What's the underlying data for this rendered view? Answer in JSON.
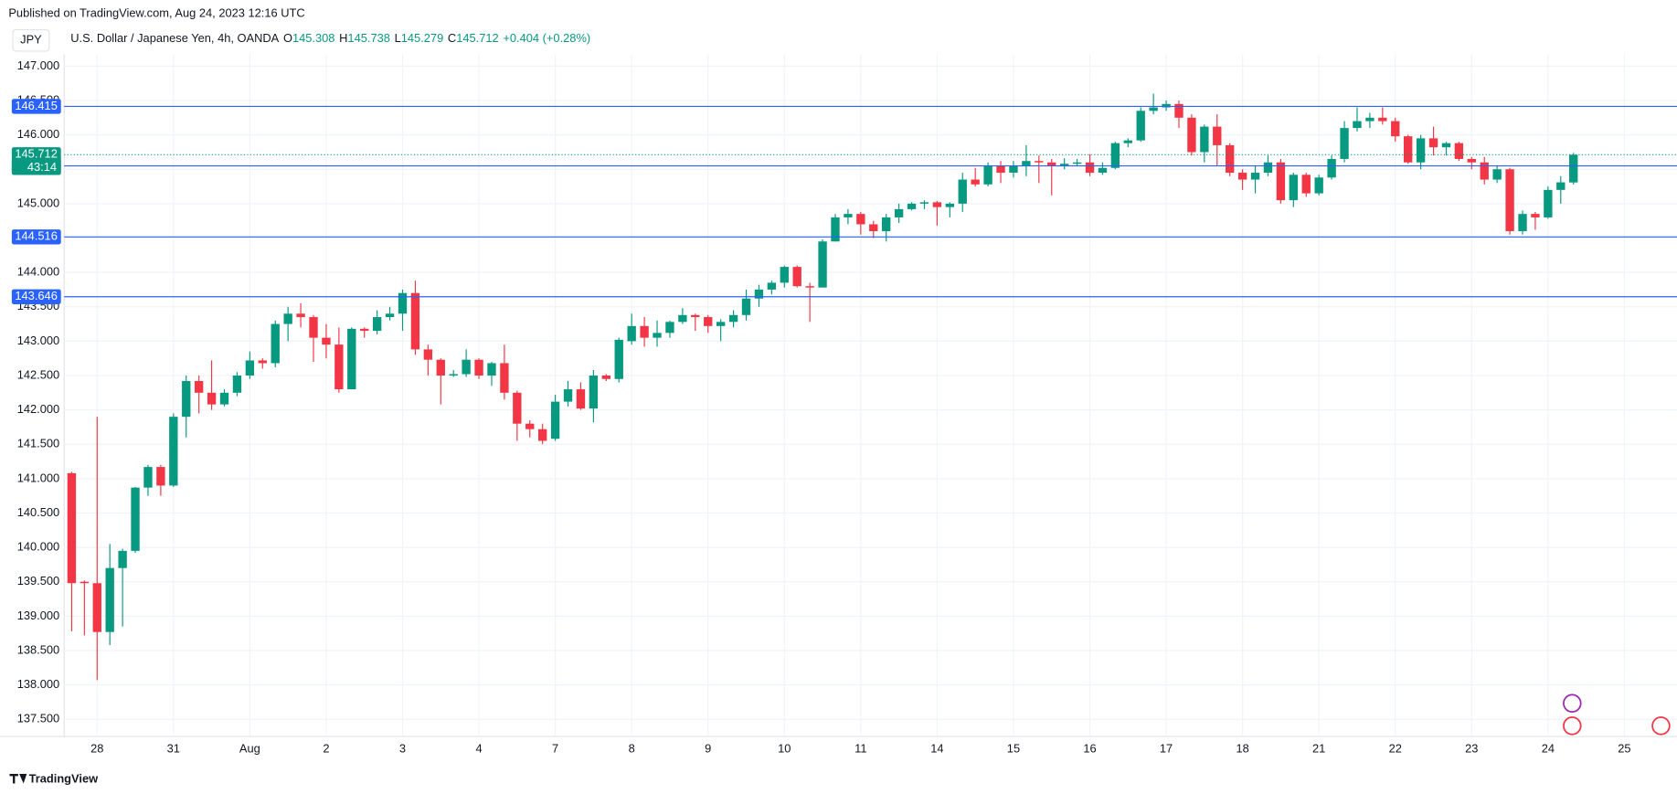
{
  "header": {
    "published": "Published on TradingView.com, Aug 24, 2023 12:16 UTC",
    "button": "JPY",
    "symbol": "U.S. Dollar / Japanese Yen, 4h, OANDA",
    "ohlc_letters": [
      "O",
      "H",
      "L",
      "C"
    ],
    "change": "+0.404 (+0.28%)"
  },
  "footer": {
    "brand": "TradingView"
  },
  "chart_data": {
    "type": "candlestick",
    "categories": [
      null,
      null,
      "28",
      null,
      null,
      null,
      null,
      null,
      "31",
      null,
      null,
      null,
      null,
      null,
      "Aug",
      null,
      null,
      null,
      null,
      null,
      "2",
      null,
      null,
      null,
      null,
      null,
      "3",
      null,
      null,
      null,
      null,
      null,
      "4",
      null,
      null,
      null,
      null,
      null,
      "7",
      null,
      null,
      null,
      null,
      null,
      "8",
      null,
      null,
      null,
      null,
      null,
      "9",
      null,
      null,
      null,
      null,
      null,
      "10",
      null,
      null,
      null,
      null,
      null,
      "11",
      null,
      null,
      null,
      null,
      null,
      "14",
      null,
      null,
      null,
      null,
      null,
      "15",
      null,
      null,
      null,
      null,
      null,
      "16",
      null,
      null,
      null,
      null,
      null,
      "17",
      null,
      null,
      null,
      null,
      null,
      "18",
      null,
      null,
      null,
      null,
      null,
      "21",
      null,
      null,
      null,
      null,
      null,
      "22",
      null,
      null,
      null,
      null,
      null,
      "23",
      null,
      null,
      null,
      null,
      null,
      "24",
      null,
      null,
      null,
      null,
      null,
      "25"
    ],
    "open": [
      141.08,
      139.5,
      139.48,
      138.77,
      139.7,
      139.95,
      140.87,
      141.17,
      140.9,
      141.9,
      142.42,
      142.25,
      142.08,
      142.25,
      142.5,
      142.72,
      142.68,
      143.25,
      143.4,
      143.35,
      143.05,
      142.95,
      142.3,
      143.18,
      143.15,
      143.35,
      143.4,
      143.7,
      142.88,
      142.73,
      142.5,
      142.52,
      142.73,
      142.5,
      142.68,
      142.25,
      141.8,
      141.72,
      141.58,
      142.12,
      142.3,
      142.02,
      142.5,
      142.45,
      143.0,
      143.22,
      143.05,
      143.12,
      143.28,
      143.38,
      143.35,
      143.22,
      143.28,
      143.38,
      143.62,
      143.75,
      143.85,
      144.08,
      143.8,
      143.78,
      144.45,
      144.8,
      144.85,
      144.7,
      144.6,
      144.8,
      144.92,
      145.0,
      145.02,
      144.95,
      145.0,
      145.35,
      145.28,
      145.55,
      145.45,
      145.55,
      145.62,
      145.6,
      145.55,
      145.58,
      145.6,
      145.45,
      145.52,
      145.88,
      145.92,
      146.35,
      146.4,
      146.45,
      146.25,
      145.75,
      146.12,
      145.85,
      145.45,
      145.35,
      145.45,
      145.6,
      145.05,
      145.42,
      145.15,
      145.38,
      145.65,
      146.1,
      146.2,
      146.25,
      146.2,
      145.98,
      145.6,
      145.95,
      145.82,
      145.88,
      145.65,
      145.6,
      145.35,
      145.5,
      144.6,
      144.85,
      144.8,
      145.2,
      145.308,
      null,
      null,
      null,
      null
    ],
    "high": [
      141.1,
      139.52,
      141.9,
      140.05,
      139.98,
      140.88,
      141.2,
      141.2,
      141.95,
      142.5,
      142.5,
      142.72,
      142.3,
      142.55,
      142.85,
      142.75,
      143.3,
      143.5,
      143.55,
      143.38,
      143.25,
      143.2,
      143.2,
      143.2,
      143.45,
      143.5,
      143.75,
      143.88,
      142.95,
      142.75,
      142.58,
      142.88,
      142.75,
      142.7,
      142.95,
      142.28,
      141.85,
      141.8,
      142.22,
      142.42,
      142.4,
      142.58,
      142.52,
      143.05,
      143.4,
      143.35,
      143.3,
      143.3,
      143.48,
      143.4,
      143.38,
      143.32,
      143.45,
      143.75,
      143.82,
      143.88,
      144.1,
      144.1,
      143.85,
      144.48,
      144.85,
      144.92,
      144.88,
      144.75,
      144.85,
      145.0,
      145.02,
      145.05,
      145.04,
      145.02,
      145.45,
      145.52,
      145.6,
      145.62,
      145.62,
      145.85,
      145.7,
      145.65,
      145.66,
      145.65,
      145.72,
      145.6,
      145.9,
      145.95,
      146.4,
      146.6,
      146.5,
      146.5,
      146.3,
      146.15,
      146.3,
      145.88,
      145.5,
      145.55,
      145.7,
      145.65,
      145.45,
      145.45,
      145.42,
      145.7,
      146.2,
      146.4,
      146.32,
      146.4,
      146.25,
      146.0,
      146.0,
      146.12,
      145.9,
      145.9,
      145.68,
      145.68,
      145.55,
      145.52,
      144.9,
      144.88,
      145.25,
      145.4,
      145.738,
      null,
      null,
      null,
      null
    ],
    "low": [
      138.78,
      138.72,
      138.07,
      138.58,
      138.85,
      139.92,
      140.75,
      140.75,
      140.88,
      141.6,
      141.95,
      142.0,
      142.05,
      142.2,
      142.45,
      142.6,
      142.62,
      143.0,
      143.2,
      142.7,
      142.75,
      142.25,
      142.3,
      143.05,
      143.1,
      143.3,
      143.15,
      142.8,
      142.5,
      142.08,
      142.48,
      142.48,
      142.45,
      142.35,
      142.15,
      141.55,
      141.6,
      141.5,
      141.55,
      142.05,
      142.0,
      141.82,
      142.42,
      142.4,
      142.95,
      142.92,
      142.92,
      143.05,
      143.25,
      143.15,
      143.12,
      143.0,
      143.2,
      143.3,
      143.5,
      143.68,
      143.78,
      143.78,
      143.28,
      143.78,
      144.45,
      144.7,
      144.55,
      144.5,
      144.45,
      144.72,
      144.9,
      144.92,
      144.68,
      144.8,
      144.88,
      145.25,
      145.25,
      145.3,
      145.38,
      145.4,
      145.3,
      145.12,
      145.5,
      145.55,
      145.4,
      145.42,
      145.5,
      145.82,
      145.9,
      146.3,
      146.35,
      146.1,
      145.7,
      145.6,
      145.55,
      145.4,
      145.2,
      145.15,
      145.4,
      145.0,
      144.95,
      145.1,
      145.12,
      145.35,
      145.6,
      146.05,
      146.1,
      146.15,
      145.9,
      145.58,
      145.5,
      145.7,
      145.7,
      145.62,
      145.5,
      145.28,
      145.3,
      144.55,
      144.55,
      144.62,
      144.78,
      145.0,
      145.279,
      null,
      null,
      null,
      null
    ],
    "close": [
      139.48,
      139.48,
      138.77,
      139.7,
      139.95,
      140.87,
      141.17,
      140.9,
      141.9,
      142.42,
      142.25,
      142.08,
      142.25,
      142.5,
      142.72,
      142.68,
      143.25,
      143.4,
      143.35,
      143.05,
      142.95,
      142.3,
      143.18,
      143.15,
      143.35,
      143.4,
      143.7,
      142.88,
      142.73,
      142.5,
      142.52,
      142.73,
      142.5,
      142.68,
      142.25,
      141.8,
      141.72,
      141.55,
      142.12,
      142.3,
      142.02,
      142.5,
      142.45,
      143.02,
      143.22,
      143.05,
      143.12,
      143.28,
      143.38,
      143.35,
      143.22,
      143.28,
      143.38,
      143.62,
      143.75,
      143.85,
      144.08,
      143.8,
      143.78,
      144.45,
      144.8,
      144.85,
      144.7,
      144.6,
      144.8,
      144.92,
      145.0,
      145.02,
      144.95,
      145.0,
      145.35,
      145.28,
      145.55,
      145.45,
      145.55,
      145.62,
      145.6,
      145.55,
      145.58,
      145.6,
      145.45,
      145.52,
      145.88,
      145.92,
      146.35,
      146.4,
      146.45,
      146.25,
      145.75,
      146.12,
      145.85,
      145.45,
      145.35,
      145.45,
      145.6,
      145.05,
      145.42,
      145.15,
      145.38,
      145.65,
      146.1,
      146.2,
      146.25,
      146.2,
      145.98,
      145.6,
      145.95,
      145.82,
      145.88,
      145.65,
      145.6,
      145.35,
      145.5,
      144.6,
      144.85,
      144.8,
      145.2,
      145.31,
      145.712,
      null,
      null,
      null,
      null
    ],
    "up_color": "#089981",
    "down_color": "#f23645",
    "levels": [
      146.415,
      145.549,
      144.516,
      143.646
    ],
    "level_color": "#2962ff",
    "countdown": "43:14",
    "ylim": [
      137.25,
      147.25
    ],
    "yticks": [
      {
        "value": 137.5,
        "label": "137.500"
      },
      {
        "value": 138,
        "label": "138.000"
      },
      {
        "value": 138.5,
        "label": "138.500"
      },
      {
        "value": 139,
        "label": "139.000"
      },
      {
        "value": 139.5,
        "label": "139.500"
      },
      {
        "value": 140,
        "label": "140.000"
      },
      {
        "value": 140.5,
        "label": "140.500"
      },
      {
        "value": 141,
        "label": "141.000"
      },
      {
        "value": 141.5,
        "label": "141.500"
      },
      {
        "value": 142,
        "label": "142.000"
      },
      {
        "value": 142.5,
        "label": "142.500"
      },
      {
        "value": 143,
        "label": "143.000"
      },
      {
        "value": 143.5,
        "label": "143.500"
      },
      {
        "value": 144,
        "label": "144.000"
      },
      {
        "value": 144.5,
        "label": "144.500"
      },
      {
        "value": 145,
        "label": "145.000"
      },
      {
        "value": 145.5,
        "label": "145.500"
      },
      {
        "value": 146,
        "label": "146.000"
      },
      {
        "value": 146.5,
        "label": "146.500"
      },
      {
        "value": 147,
        "label": "147.000"
      }
    ],
    "grid": true
  }
}
